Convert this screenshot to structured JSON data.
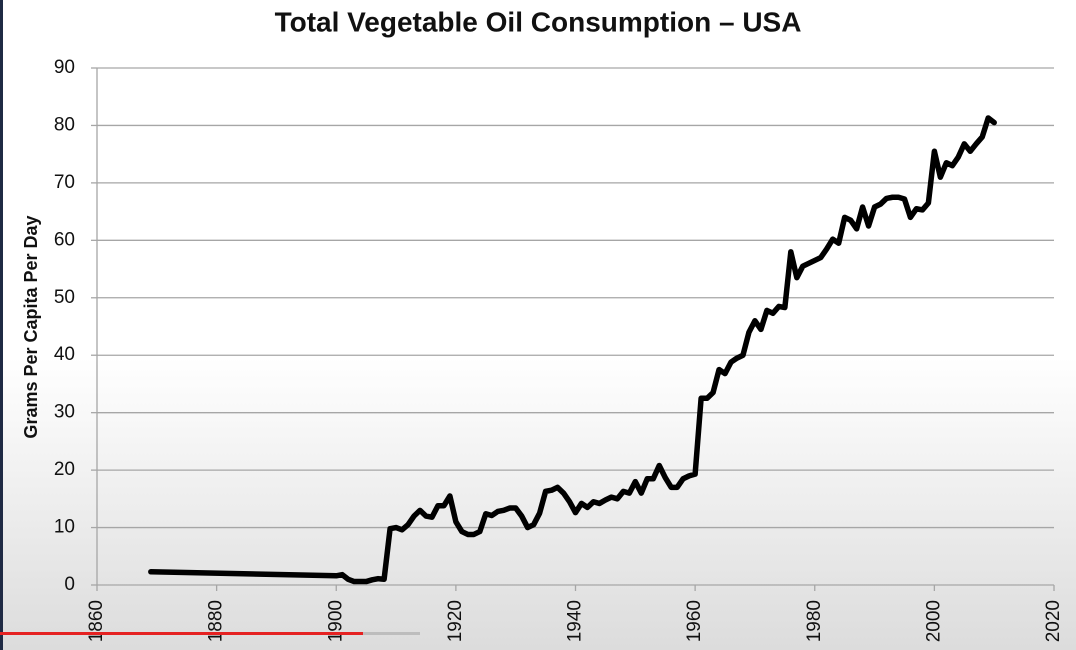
{
  "chart_data": {
    "type": "line",
    "title": "Total Vegetable Oil Consumption – USA",
    "y_label": "Grams Per Capita Per Day",
    "x": [
      1869,
      1900,
      1901,
      1902,
      1903,
      1905,
      1906,
      1907,
      1908,
      1909,
      1910,
      1911,
      1912,
      1913,
      1914,
      1915,
      1916,
      1917,
      1918,
      1919,
      1920,
      1921,
      1922,
      1923,
      1924,
      1925,
      1926,
      1927,
      1928,
      1929,
      1930,
      1931,
      1932,
      1933,
      1934,
      1935,
      1936,
      1937,
      1938,
      1939,
      1940,
      1941,
      1942,
      1943,
      1944,
      1945,
      1946,
      1947,
      1948,
      1949,
      1950,
      1951,
      1952,
      1953,
      1954,
      1955,
      1956,
      1957,
      1958,
      1959,
      1960,
      1961,
      1962,
      1963,
      1964,
      1965,
      1966,
      1967,
      1968,
      1969,
      1970,
      1971,
      1972,
      1973,
      1974,
      1975,
      1976,
      1977,
      1978,
      1979,
      1980,
      1981,
      1982,
      1983,
      1984,
      1985,
      1986,
      1987,
      1988,
      1989,
      1990,
      1991,
      1992,
      1993,
      1994,
      1995,
      1996,
      1997,
      1998,
      1999,
      2000,
      2001,
      2002,
      2003,
      2004,
      2005,
      2006,
      2007,
      2008,
      2009,
      2010
    ],
    "series": [
      {
        "color": "#000000",
        "values": [
          2.3,
          1.6,
          1.8,
          1.0,
          0.6,
          0.6,
          0.9,
          1.1,
          1.0,
          9.8,
          10.0,
          9.6,
          10.5,
          12,
          13,
          12,
          11.8,
          13.8,
          13.8,
          15.5,
          11,
          9.3,
          8.8,
          8.8,
          9.3,
          12.4,
          12.1,
          12.8,
          13,
          13.4,
          13.4,
          12,
          10,
          10.5,
          12.5,
          16.3,
          16.5,
          17,
          16,
          14.5,
          12.6,
          14.2,
          13.5,
          14.5,
          14.2,
          14.8,
          15.3,
          15,
          16.3,
          16,
          18,
          16,
          18.5,
          18.5,
          20.8,
          18.7,
          17,
          17,
          18.5,
          19,
          19.3,
          32.5,
          32.5,
          33.5,
          37.5,
          36.8,
          38.8,
          39.5,
          40,
          44,
          46,
          44.5,
          47.8,
          47.3,
          48.5,
          48.3,
          58,
          53.5,
          55.5,
          56,
          56.5,
          57,
          58.5,
          60.2,
          59.5,
          64,
          63.5,
          62,
          65.8,
          62.5,
          65.8,
          66.3,
          67.3,
          67.5,
          67.5,
          67.2,
          64,
          65.5,
          65.3,
          66.5,
          75.5,
          71,
          73.5,
          73,
          74.5,
          76.8,
          75.5,
          76.8,
          78,
          81.3,
          80.5
        ]
      }
    ],
    "xlim": [
      1860,
      2020
    ],
    "xticks": [
      1860,
      1880,
      1900,
      1920,
      1940,
      1960,
      1980,
      2000,
      2020
    ],
    "ylim": [
      0,
      90
    ],
    "yticks": [
      0,
      10,
      20,
      30,
      40,
      50,
      60,
      70,
      80,
      90
    ],
    "grid": true
  }
}
